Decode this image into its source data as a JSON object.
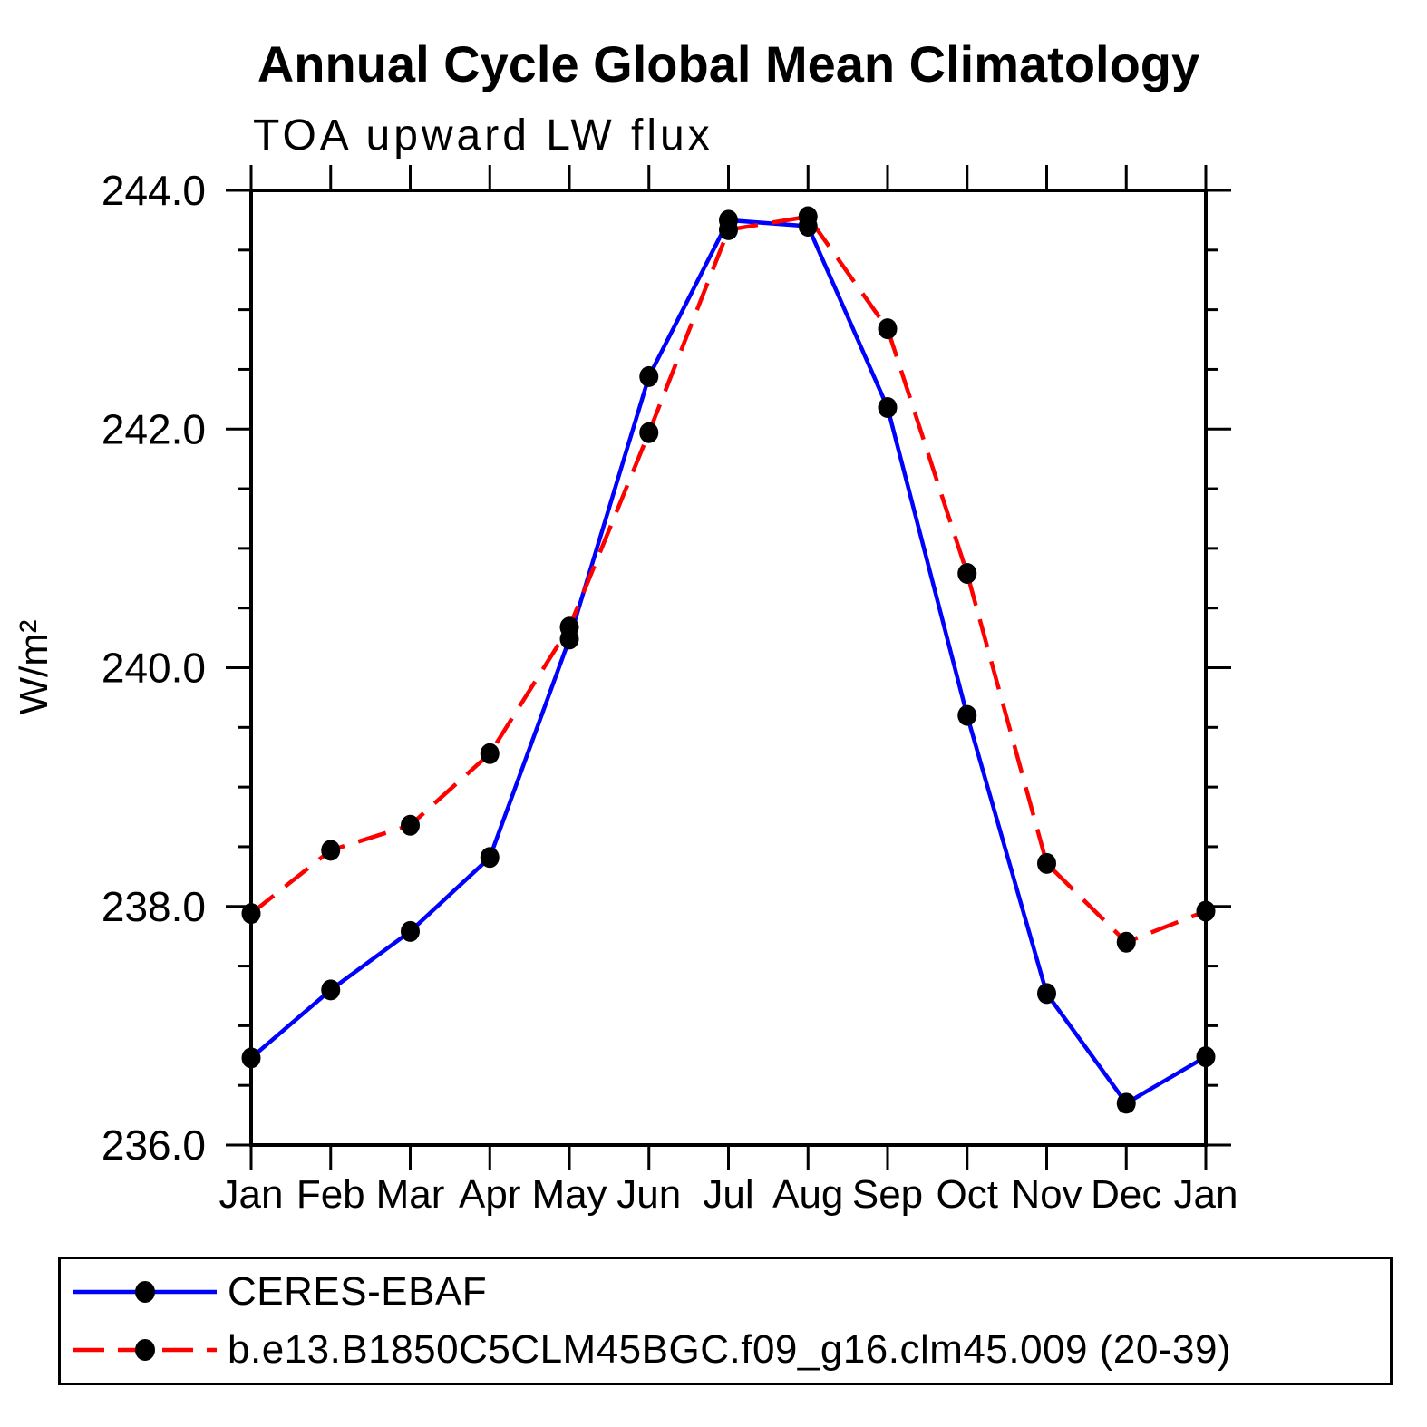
{
  "title": "Annual Cycle Global Mean Climatology",
  "chart_data": {
    "type": "line",
    "title": "Annual Cycle Global Mean Climatology",
    "subtitle": "TOA upward LW flux",
    "xlabel": "",
    "ylabel": "W/m²",
    "ylim": [
      236.0,
      244.0
    ],
    "ytick_step_major": 2.0,
    "ytick_step_minor": 0.5,
    "ytick_labels": [
      "236.0",
      "238.0",
      "240.0",
      "242.0",
      "244.0"
    ],
    "x_labels": [
      "Jan",
      "Feb",
      "Mar",
      "Apr",
      "May",
      "Jun",
      "Jul",
      "Aug",
      "Sep",
      "Oct",
      "Nov",
      "Dec",
      "Jan"
    ],
    "grid": false,
    "legend_position": "bottom-left-box",
    "axis_color": "#000000",
    "marker_color": "#000000",
    "series": [
      {
        "name": "CERES-EBAF",
        "color": "#0000ff",
        "line_style": "solid",
        "marker": "filled-circle",
        "values": [
          236.73,
          237.3,
          237.79,
          238.41,
          240.24,
          242.44,
          243.75,
          243.7,
          242.18,
          239.6,
          237.27,
          236.35,
          236.74
        ]
      },
      {
        "name": "b.e13.B1850C5CLM45BGC.f09_g16.clm45.009 (20-39)",
        "color": "#ff0000",
        "line_style": "dashed",
        "marker": "filled-circle",
        "values": [
          237.94,
          238.47,
          238.68,
          239.28,
          240.34,
          241.97,
          243.67,
          243.78,
          242.84,
          240.79,
          238.36,
          237.7,
          237.96
        ]
      }
    ]
  }
}
